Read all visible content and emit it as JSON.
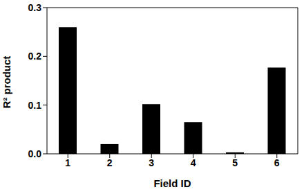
{
  "chart_data": {
    "type": "bar",
    "categories": [
      "1",
      "2",
      "3",
      "4",
      "5",
      "6"
    ],
    "values": [
      0.26,
      0.02,
      0.102,
      0.065,
      0.003,
      0.177
    ],
    "color": "#000000",
    "x_label": "Field ID",
    "y_label": "R² product",
    "ylim": [
      0,
      0.3
    ],
    "yticks": [
      {
        "value": 0,
        "label": "0.0"
      },
      {
        "value": 0.1,
        "label": "0.1"
      },
      {
        "value": 0.2,
        "label": "0.2"
      },
      {
        "value": 0.3,
        "label": "0.3"
      }
    ],
    "grid": false
  }
}
